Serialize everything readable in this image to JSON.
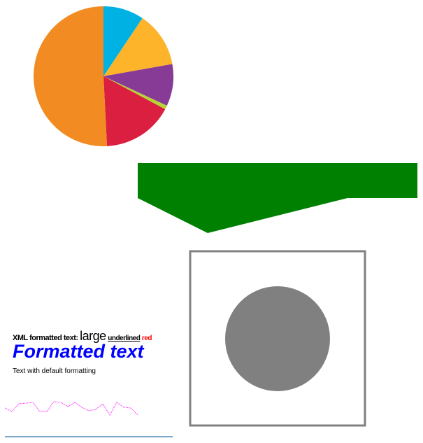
{
  "chart_data": {
    "type": "pie",
    "slices": [
      {
        "value": 9.4,
        "color": "#00b2e3"
      },
      {
        "value": 12.8,
        "color": "#fdb32a"
      },
      {
        "value": 9.7,
        "color": "#873a96"
      },
      {
        "value": 0.9,
        "color": "#b6d434"
      },
      {
        "value": 16.4,
        "color": "#db1f40"
      },
      {
        "value": 50.8,
        "color": "#f28c22"
      }
    ]
  },
  "shapes": {
    "polygon_color": "#008000",
    "square_stroke": "#808080",
    "circle_fill": "#808080",
    "polyline_color": "#ff00ff",
    "line_color": "#7ba7c9"
  },
  "text": {
    "xml_prefix": "XML formatted text: ",
    "xml_large": "large",
    "xml_underlined": "underlined",
    "xml_red": "red",
    "formatted": "Formatted text",
    "default": "Text with default formatting"
  }
}
